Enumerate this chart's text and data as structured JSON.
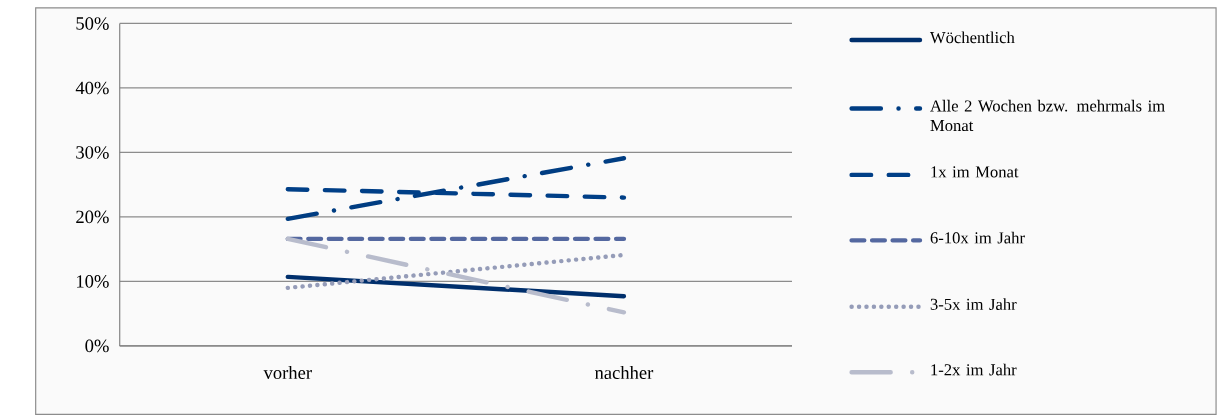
{
  "chart_data": {
    "type": "line",
    "categories": [
      "vorher",
      "nachher"
    ],
    "series": [
      {
        "name": "Wöchentlich",
        "color": "#002f6c",
        "values": [
          10.7,
          7.7
        ],
        "line_style": "solid"
      },
      {
        "name": "Alle 2 Wochen bzw. mehrmals im Monat",
        "color": "#003d82",
        "values": [
          19.7,
          29.1
        ],
        "line_style": "dashed"
      },
      {
        "name": "1x im Monat",
        "color": "#003f87",
        "values": [
          24.3,
          23.0
        ],
        "line_style": "dashed"
      },
      {
        "name": "6-10x im Jahr",
        "color": "#5468a0",
        "values": [
          16.6,
          16.6
        ],
        "line_style": "dashed"
      },
      {
        "name": "3-5x im Jahr",
        "color": "#959cb8",
        "values": [
          9.0,
          14.1
        ],
        "line_style": "dotted"
      },
      {
        "name": "1-2x im Jahr",
        "color": "#b8bccc",
        "values": [
          16.6,
          5.2
        ],
        "line_style": "dashed"
      }
    ],
    "ylim": [
      0,
      50
    ],
    "yticks": [
      {
        "value": 0,
        "label": "0%"
      },
      {
        "value": 10,
        "label": "10%"
      },
      {
        "value": 20,
        "label": "20%"
      },
      {
        "value": 30,
        "label": "30%"
      },
      {
        "value": 40,
        "label": "40%"
      },
      {
        "value": 50,
        "label": "50%"
      }
    ],
    "grid": "y",
    "legend": "right",
    "marker": "none"
  }
}
